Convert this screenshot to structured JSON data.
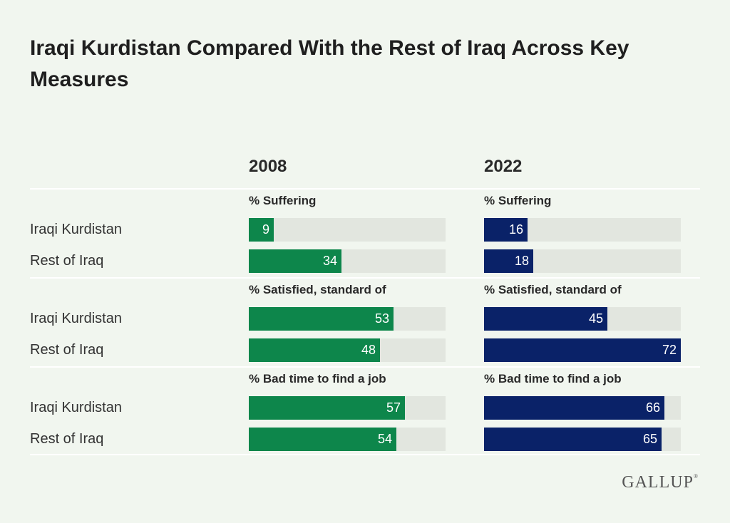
{
  "title": "Iraqi Kurdistan Compared With the Rest of Iraq Across Key Measures",
  "logo": "GALLUP",
  "chart_data": {
    "type": "bar",
    "orientation": "horizontal",
    "xlim": [
      0,
      72
    ],
    "columns": [
      "2008",
      "2022"
    ],
    "colors": {
      "2008": "#0d864b",
      "2022": "#0a2268",
      "track": "#e2e6df"
    },
    "groups": [
      {
        "measure": "% Suffering",
        "rows": [
          {
            "label": "Iraqi Kurdistan",
            "values": [
              9,
              16
            ]
          },
          {
            "label": "Rest of Iraq",
            "values": [
              34,
              18
            ]
          }
        ]
      },
      {
        "measure": "% Satisfied, standard of",
        "rows": [
          {
            "label": "Iraqi Kurdistan",
            "values": [
              53,
              45
            ]
          },
          {
            "label": "Rest of Iraq",
            "values": [
              48,
              72
            ]
          }
        ]
      },
      {
        "measure": "% Bad time to find a job",
        "rows": [
          {
            "label": "Iraqi Kurdistan",
            "values": [
              57,
              66
            ]
          },
          {
            "label": "Rest of Iraq",
            "values": [
              54,
              65
            ]
          }
        ]
      }
    ]
  }
}
